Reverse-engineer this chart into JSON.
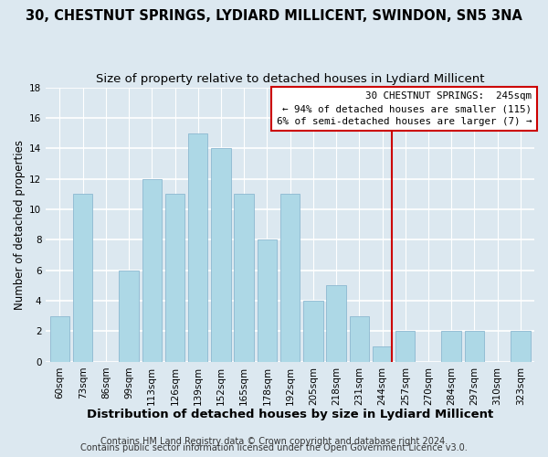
{
  "title": "30, CHESTNUT SPRINGS, LYDIARD MILLICENT, SWINDON, SN5 3NA",
  "subtitle": "Size of property relative to detached houses in Lydiard Millicent",
  "xlabel": "Distribution of detached houses by size in Lydiard Millicent",
  "ylabel": "Number of detached properties",
  "bar_labels": [
    "60sqm",
    "73sqm",
    "86sqm",
    "99sqm",
    "113sqm",
    "126sqm",
    "139sqm",
    "152sqm",
    "165sqm",
    "178sqm",
    "192sqm",
    "205sqm",
    "218sqm",
    "231sqm",
    "244sqm",
    "257sqm",
    "270sqm",
    "284sqm",
    "297sqm",
    "310sqm",
    "323sqm"
  ],
  "bar_values": [
    3,
    11,
    0,
    6,
    12,
    11,
    15,
    14,
    11,
    8,
    11,
    4,
    5,
    3,
    1,
    2,
    0,
    2,
    2,
    0,
    2
  ],
  "bar_color": "#add8e6",
  "bar_edge_color": "#8cb8d0",
  "vline_color": "#cc0000",
  "ylim": [
    0,
    18
  ],
  "yticks": [
    0,
    2,
    4,
    6,
    8,
    10,
    12,
    14,
    16,
    18
  ],
  "legend_title": "30 CHESTNUT SPRINGS:  245sqm",
  "legend_line1": "← 94% of detached houses are smaller (115)",
  "legend_line2": "6% of semi-detached houses are larger (7) →",
  "legend_box_color": "#ffffff",
  "legend_box_edge": "#cc0000",
  "footer1": "Contains HM Land Registry data © Crown copyright and database right 2024.",
  "footer2": "Contains public sector information licensed under the Open Government Licence v3.0.",
  "bg_color": "#dce8f0",
  "plot_bg_color": "#dce8f0",
  "grid_color": "#ffffff",
  "title_fontsize": 10.5,
  "subtitle_fontsize": 9.5,
  "xlabel_fontsize": 9.5,
  "ylabel_fontsize": 8.5,
  "tick_fontsize": 7.5,
  "footer_fontsize": 7
}
